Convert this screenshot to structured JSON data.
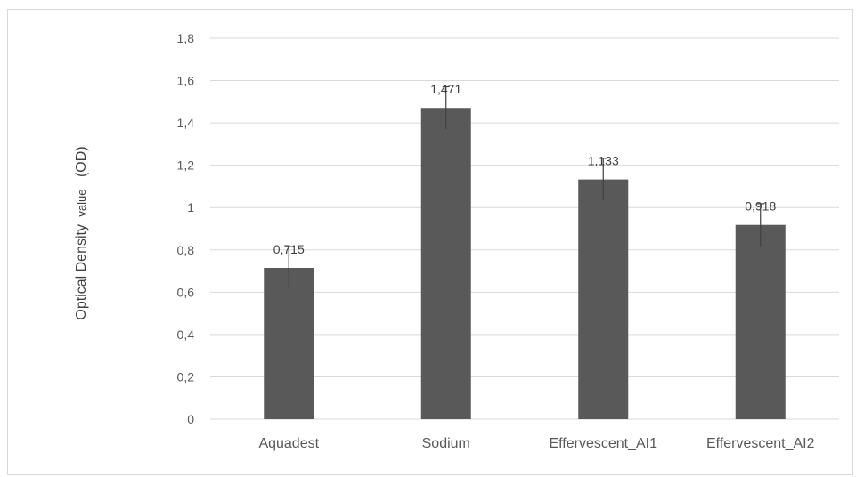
{
  "chart_data": {
    "type": "bar",
    "categories": [
      "Aquadest",
      "Sodium",
      "Effervescent_AI1",
      "Effervescent_AI2"
    ],
    "values": [
      0.715,
      1.471,
      1.133,
      0.918
    ],
    "data_labels": [
      "0,715",
      "1,471",
      "1,133",
      "0,918"
    ],
    "error": [
      0.1,
      0.1,
      0.1,
      0.1
    ],
    "ylabel_main": "Optical Density",
    "ylabel_unit": "value",
    "ylabel_suffix": "(OD)",
    "ylim": [
      0,
      1.8
    ],
    "yticks": [
      0,
      0.2,
      0.4,
      0.6,
      0.8,
      1.0,
      1.2,
      1.4,
      1.6,
      1.8
    ],
    "ytick_labels": [
      "0",
      "0,2",
      "0,4",
      "0,6",
      "0,8",
      "1",
      "1,2",
      "1,4",
      "1,6",
      "1,8"
    ],
    "grid": true,
    "legend": "none",
    "colors": {
      "bar": "#595959",
      "grid": "#d9d9d9",
      "error": "#404040"
    }
  }
}
